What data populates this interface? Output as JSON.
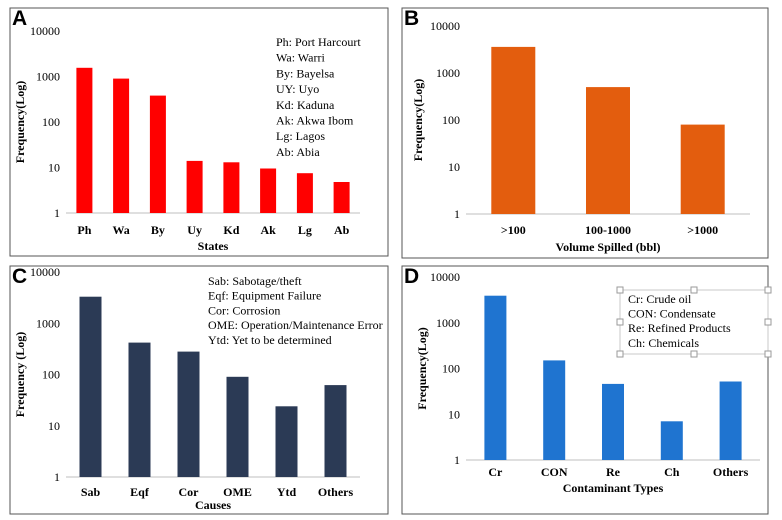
{
  "chart_data": [
    {
      "panel": "A",
      "type": "bar",
      "yscale": "log",
      "ylabel": "Frequency(Log)",
      "xlabel": "States",
      "ylim": [
        1,
        10000
      ],
      "yticks": [
        "1",
        "10",
        "100",
        "1000",
        "10000"
      ],
      "categories": [
        "Ph",
        "Wa",
        "By",
        "Uy",
        "Kd",
        "Ak",
        "Lg",
        "Ab"
      ],
      "values": [
        1550,
        900,
        380,
        14,
        13,
        9.5,
        7.5,
        4.8
      ],
      "color": "#ff0000",
      "legend": [
        "Ph: Port Harcourt",
        "Wa: Warri",
        "By: Bayelsa",
        "UY: Uyo",
        "Kd: Kaduna",
        "Ak: Akwa Ibom",
        "Lg: Lagos",
        "Ab: Abia"
      ]
    },
    {
      "panel": "B",
      "type": "bar",
      "yscale": "log",
      "ylabel": "Frequency(Log)",
      "xlabel": "Volume Spilled (bbl)",
      "ylim": [
        1,
        10000
      ],
      "yticks": [
        "1",
        "10",
        "100",
        "1000",
        "10000"
      ],
      "categories": [
        ">100",
        "100-1000",
        ">1000"
      ],
      "values": [
        3600,
        500,
        80
      ],
      "color": "#e35d0e",
      "legend": []
    },
    {
      "panel": "C",
      "type": "bar",
      "yscale": "log",
      "ylabel": "Frequency (Log)",
      "xlabel": "Causes",
      "ylim": [
        1,
        10000
      ],
      "yticks": [
        "1",
        "10",
        "100",
        "1000",
        "10000"
      ],
      "categories": [
        "Sab",
        "Eqf",
        "Cor",
        "OME",
        "Ytd",
        "Others"
      ],
      "values": [
        3300,
        420,
        280,
        90,
        24,
        62
      ],
      "color": "#2b3a55",
      "legend": [
        "Sab: Sabotage/theft",
        "Eqf: Equipment Failure",
        "Cor: Corrosion",
        "OME: Operation/Maintenance Error",
        "Ytd: Yet to be determined"
      ]
    },
    {
      "panel": "D",
      "type": "bar",
      "yscale": "log",
      "ylabel": "Frequency(Log)",
      "xlabel": "Contaminant Types",
      "ylim": [
        1,
        10000
      ],
      "yticks": [
        "1",
        "10",
        "100",
        "1000",
        "10000"
      ],
      "categories": [
        "Cr",
        "CON",
        "Re",
        "Ch",
        "Others"
      ],
      "values": [
        3900,
        150,
        46,
        7,
        52
      ],
      "color": "#1f74d0",
      "legend": [
        "Cr: Crude oil",
        "CON: Condensate",
        "Re: Refined Products",
        "Ch: Chemicals"
      ]
    }
  ]
}
